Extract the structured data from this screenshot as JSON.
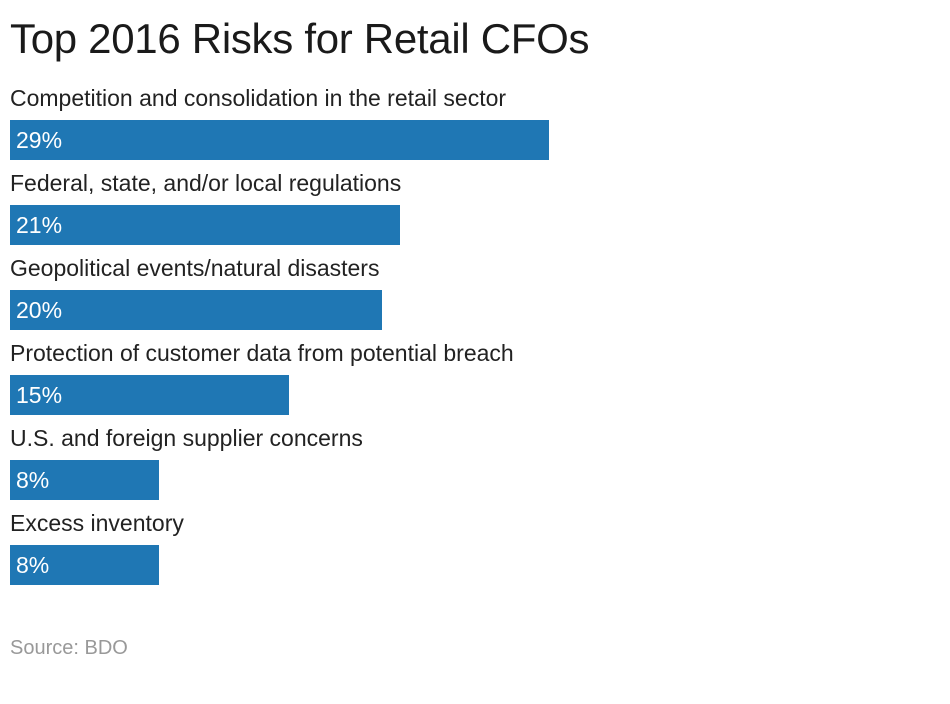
{
  "chart_data": {
    "type": "bar",
    "orientation": "horizontal",
    "title": "Top 2016 Risks for Retail CFOs",
    "categories": [
      "Competition and consolidation in the retail sector",
      "Federal, state, and/or local regulations",
      "Geopolitical events/natural disasters",
      "Protection of customer data from potential breach",
      "U.S. and foreign supplier concerns",
      "Excess inventory"
    ],
    "values": [
      29,
      21,
      20,
      15,
      8,
      8
    ],
    "value_labels": [
      "29%",
      "21%",
      "20%",
      "15%",
      "8%",
      "8%"
    ],
    "xlim": [
      0,
      50
    ],
    "grid": false,
    "bar_color": "#1f77b4",
    "source": "Source: BDO"
  }
}
